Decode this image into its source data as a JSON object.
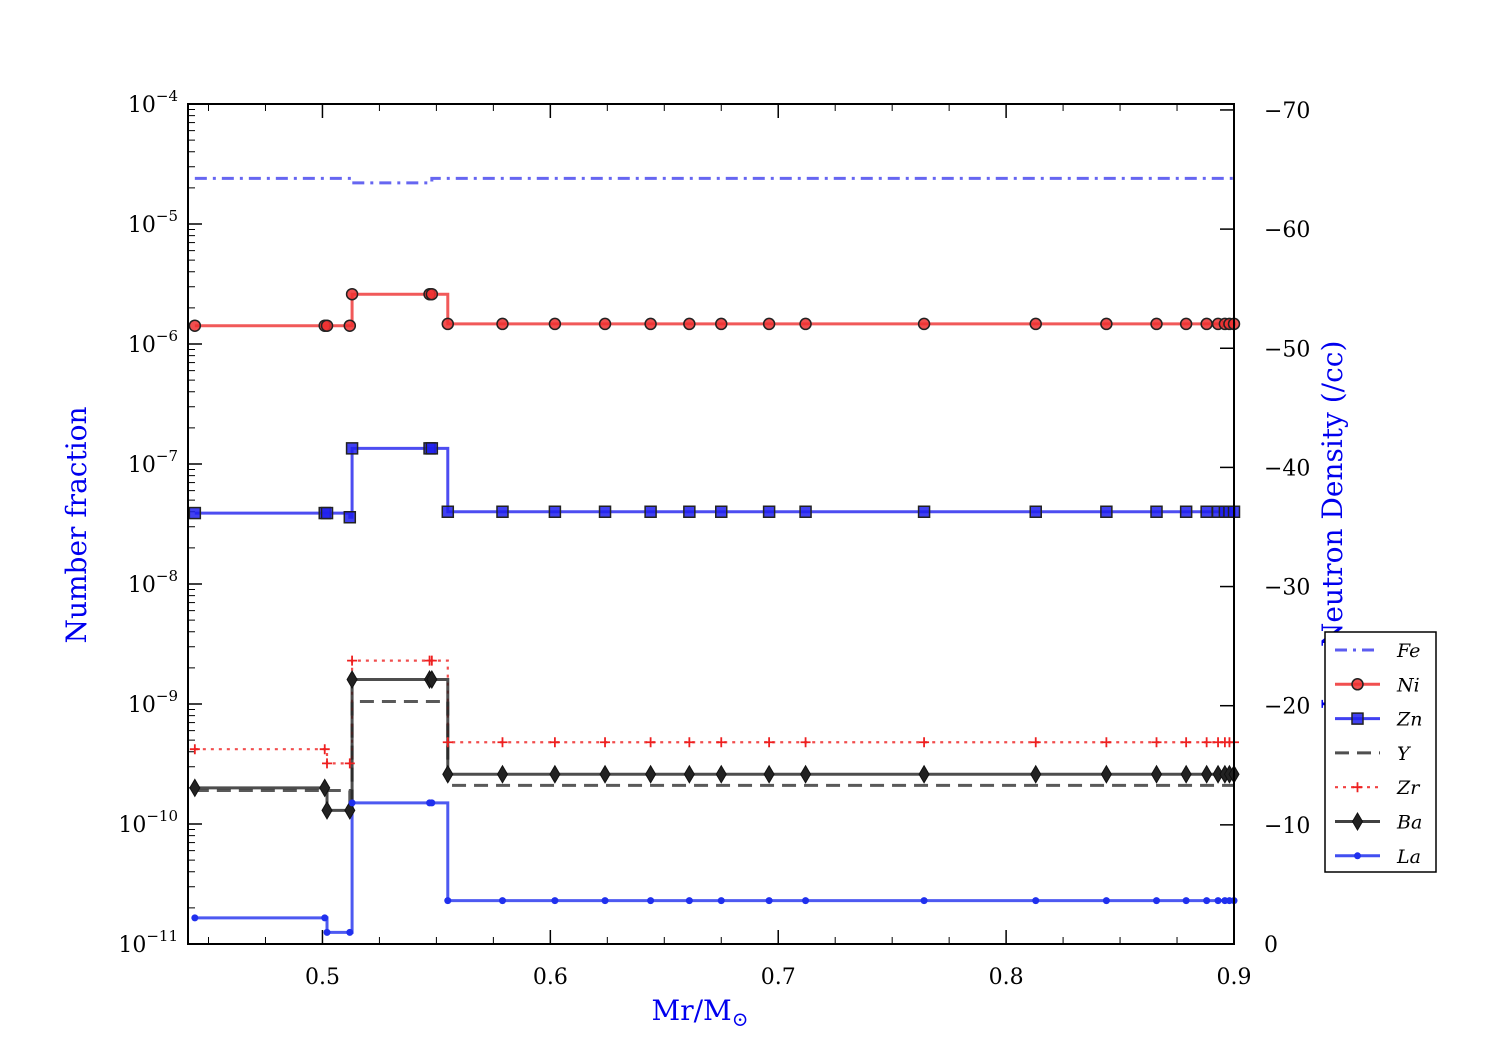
{
  "chart_data": {
    "type": "line",
    "xlabel": "Mr/M",
    "xlabel_sub": "⊙",
    "ylabel": "Number fraction",
    "y2label": "Log Neutron Density (/cc)",
    "label_color": "#0000ee",
    "xlim": [
      0.441,
      0.9
    ],
    "ylim": [
      1e-11,
      0.0001
    ],
    "yscale": "log",
    "y2lim": [
      0,
      70.5
    ],
    "x_ticks": [
      {
        "value": 0.5,
        "label": "0.5"
      },
      {
        "value": 0.6,
        "label": "0.6"
      },
      {
        "value": 0.7,
        "label": "0.7"
      },
      {
        "value": 0.8,
        "label": "0.8"
      },
      {
        "value": 0.9,
        "label": "0.9"
      }
    ],
    "y_ticks": [
      {
        "value": 0.0001,
        "base": "10",
        "exp": "−4"
      },
      {
        "value": 1e-05,
        "base": "10",
        "exp": "−5"
      },
      {
        "value": 1e-06,
        "base": "10",
        "exp": "−6"
      },
      {
        "value": 1e-07,
        "base": "10",
        "exp": "−7"
      },
      {
        "value": 1e-08,
        "base": "10",
        "exp": "−8"
      },
      {
        "value": 1e-09,
        "base": "10",
        "exp": "−9"
      },
      {
        "value": 1e-10,
        "base": "10",
        "exp": "−10"
      },
      {
        "value": 1e-11,
        "base": "10",
        "exp": "−11"
      }
    ],
    "y2_ticks": [
      {
        "value": 70,
        "label": "−70"
      },
      {
        "value": 60,
        "label": "−60"
      },
      {
        "value": 50,
        "label": "−50"
      },
      {
        "value": 40,
        "label": "−40"
      },
      {
        "value": 30,
        "label": "−30"
      },
      {
        "value": 20,
        "label": "−20"
      },
      {
        "value": 10,
        "label": "−10"
      },
      {
        "value": 0,
        "label": "0"
      }
    ],
    "legend_position": "right",
    "x": [
      0.444,
      0.501,
      0.502,
      0.512,
      0.513,
      0.547,
      0.548,
      0.555,
      0.579,
      0.602,
      0.624,
      0.644,
      0.661,
      0.675,
      0.696,
      0.712,
      0.764,
      0.813,
      0.844,
      0.866,
      0.879,
      0.888,
      0.893,
      0.896,
      0.898,
      0.9
    ],
    "series": [
      {
        "name": "Fe",
        "color": "#4040ee",
        "dash": "dashdot",
        "marker": "none",
        "values": [
          2.4e-05,
          2.4e-05,
          2.4e-05,
          2.4e-05,
          2.2e-05,
          2.2e-05,
          2.4e-05,
          2.4e-05,
          2.4e-05,
          2.4e-05,
          2.4e-05,
          2.4e-05,
          2.4e-05,
          2.4e-05,
          2.4e-05,
          2.4e-05,
          2.4e-05,
          2.4e-05,
          2.4e-05,
          2.4e-05,
          2.4e-05,
          2.4e-05,
          2.4e-05,
          2.4e-05,
          2.4e-05,
          2.4e-05
        ]
      },
      {
        "name": "Ni",
        "color": "#ee3030",
        "dash": "solid",
        "marker": "circle",
        "values": [
          1.42e-06,
          1.42e-06,
          1.42e-06,
          1.42e-06,
          2.6e-06,
          2.6e-06,
          2.6e-06,
          1.47e-06,
          1.47e-06,
          1.47e-06,
          1.47e-06,
          1.47e-06,
          1.47e-06,
          1.47e-06,
          1.47e-06,
          1.47e-06,
          1.47e-06,
          1.47e-06,
          1.47e-06,
          1.47e-06,
          1.47e-06,
          1.47e-06,
          1.47e-06,
          1.47e-06,
          1.47e-06,
          1.47e-06
        ]
      },
      {
        "name": "Zn",
        "color": "#2020ee",
        "dash": "solid",
        "marker": "square",
        "values": [
          3.9e-08,
          3.9e-08,
          3.9e-08,
          3.6e-08,
          1.35e-07,
          1.35e-07,
          1.35e-07,
          4e-08,
          4e-08,
          4e-08,
          4e-08,
          4e-08,
          4e-08,
          4e-08,
          4e-08,
          4e-08,
          4e-08,
          4e-08,
          4e-08,
          4e-08,
          4e-08,
          4e-08,
          4e-08,
          4e-08,
          4e-08,
          4e-08
        ]
      },
      {
        "name": "Y",
        "color": "#303030",
        "dash": "dashed",
        "marker": "none",
        "values": [
          1.9e-10,
          1.9e-10,
          1.9e-10,
          1.4e-10,
          1.05e-09,
          1.05e-09,
          1.05e-09,
          2.1e-10,
          2.1e-10,
          2.1e-10,
          2.1e-10,
          2.1e-10,
          2.1e-10,
          2.1e-10,
          2.1e-10,
          2.1e-10,
          2.1e-10,
          2.1e-10,
          2.1e-10,
          2.1e-10,
          2.1e-10,
          2.1e-10,
          2.1e-10,
          2.1e-10,
          2.1e-10,
          2.1e-10
        ]
      },
      {
        "name": "Zr",
        "color": "#ee2020",
        "dash": "dotted",
        "marker": "plus",
        "values": [
          4.2e-10,
          4.2e-10,
          3.2e-10,
          3.2e-10,
          2.3e-09,
          2.3e-09,
          2.3e-09,
          4.8e-10,
          4.8e-10,
          4.8e-10,
          4.8e-10,
          4.8e-10,
          4.8e-10,
          4.8e-10,
          4.8e-10,
          4.8e-10,
          4.8e-10,
          4.8e-10,
          4.8e-10,
          4.8e-10,
          4.8e-10,
          4.8e-10,
          4.8e-10,
          4.8e-10,
          4.8e-10,
          4.8e-10
        ]
      },
      {
        "name": "Ba",
        "color": "#202020",
        "dash": "solid",
        "marker": "diamond",
        "values": [
          2e-10,
          2e-10,
          1.3e-10,
          1.3e-10,
          1.6e-09,
          1.6e-09,
          1.6e-09,
          2.6e-10,
          2.6e-10,
          2.6e-10,
          2.6e-10,
          2.6e-10,
          2.6e-10,
          2.6e-10,
          2.6e-10,
          2.6e-10,
          2.6e-10,
          2.6e-10,
          2.6e-10,
          2.6e-10,
          2.6e-10,
          2.6e-10,
          2.6e-10,
          2.6e-10,
          2.6e-10,
          2.6e-10
        ]
      },
      {
        "name": "La",
        "color": "#2030ee",
        "dash": "solid",
        "marker": "dot",
        "values": [
          1.65e-11,
          1.65e-11,
          1.25e-11,
          1.25e-11,
          1.5e-10,
          1.5e-10,
          1.5e-10,
          2.3e-11,
          2.3e-11,
          2.3e-11,
          2.3e-11,
          2.3e-11,
          2.3e-11,
          2.3e-11,
          2.3e-11,
          2.3e-11,
          2.3e-11,
          2.3e-11,
          2.3e-11,
          2.3e-11,
          2.3e-11,
          2.3e-11,
          2.3e-11,
          2.3e-11,
          2.3e-11,
          2.3e-11
        ]
      }
    ]
  }
}
